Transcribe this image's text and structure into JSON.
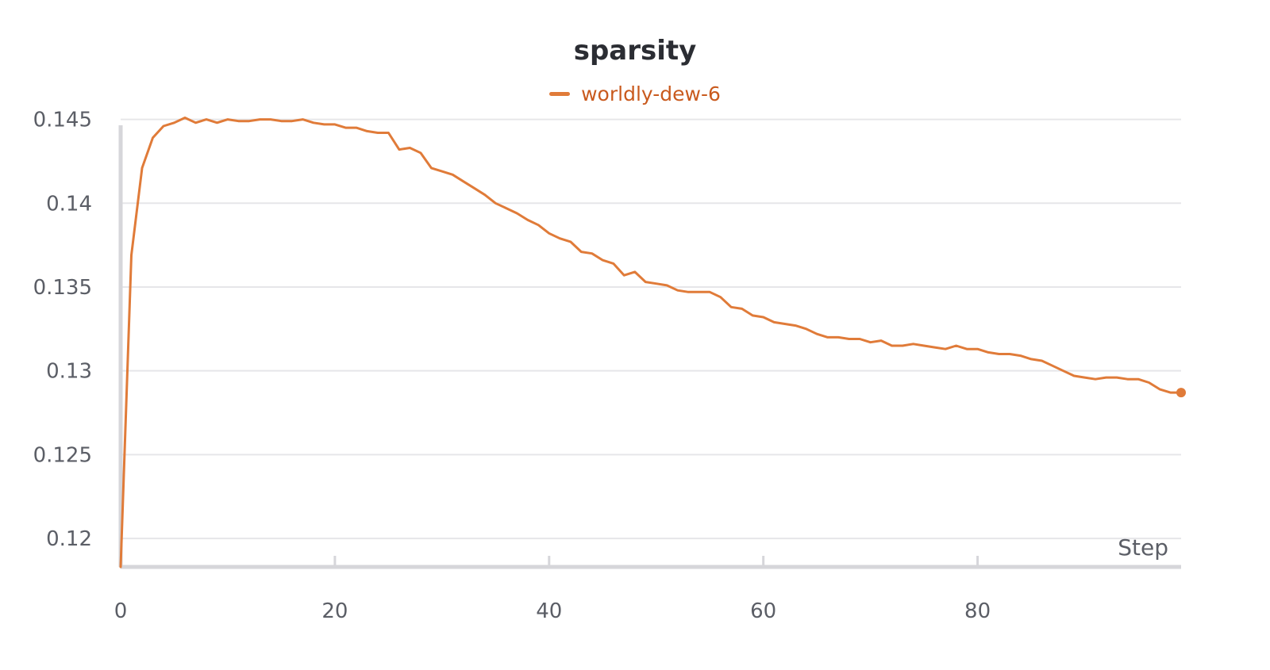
{
  "chart_data": {
    "type": "line",
    "title": "sparsity",
    "xlabel": "Step",
    "ylabel": "",
    "xlim": [
      0,
      99
    ],
    "ylim": [
      0.1183,
      0.1455
    ],
    "x_ticks": [
      0,
      20,
      40,
      60,
      80
    ],
    "y_ticks": [
      0.12,
      0.125,
      0.13,
      0.135,
      0.14,
      0.145
    ],
    "y_tick_labels": [
      "0.12",
      "0.125",
      "0.13",
      "0.135",
      "0.14",
      "0.145"
    ],
    "grid": true,
    "legend_position": "top-center",
    "series": [
      {
        "name": "worldly-dew-6",
        "color": "#e07b39",
        "x": [
          0,
          1,
          2,
          3,
          4,
          5,
          6,
          7,
          8,
          9,
          10,
          11,
          12,
          13,
          14,
          15,
          16,
          17,
          18,
          19,
          20,
          21,
          22,
          23,
          24,
          25,
          26,
          27,
          28,
          29,
          30,
          31,
          32,
          33,
          34,
          35,
          36,
          37,
          38,
          39,
          40,
          41,
          42,
          43,
          44,
          45,
          46,
          47,
          48,
          49,
          50,
          51,
          52,
          53,
          54,
          55,
          56,
          57,
          58,
          59,
          60,
          61,
          62,
          63,
          64,
          65,
          66,
          67,
          68,
          69,
          70,
          71,
          72,
          73,
          74,
          75,
          76,
          77,
          78,
          79,
          80,
          81,
          82,
          83,
          84,
          85,
          86,
          87,
          88,
          89,
          90,
          91,
          92,
          93,
          94,
          95,
          96,
          97,
          98,
          99
        ],
        "y": [
          0.1183,
          0.1369,
          0.1421,
          0.1439,
          0.1446,
          0.1448,
          0.1451,
          0.1448,
          0.145,
          0.1448,
          0.145,
          0.1449,
          0.1449,
          0.145,
          0.145,
          0.1449,
          0.1449,
          0.145,
          0.1448,
          0.1447,
          0.1447,
          0.1445,
          0.1445,
          0.1443,
          0.1442,
          0.1442,
          0.1432,
          0.1433,
          0.143,
          0.1421,
          0.1419,
          0.1417,
          0.1413,
          0.1409,
          0.1405,
          0.14,
          0.1397,
          0.1394,
          0.139,
          0.1387,
          0.1382,
          0.1379,
          0.1377,
          0.1371,
          0.137,
          0.1366,
          0.1364,
          0.1357,
          0.1359,
          0.1353,
          0.1352,
          0.1351,
          0.1348,
          0.1347,
          0.1347,
          0.1347,
          0.1344,
          0.1338,
          0.1337,
          0.1333,
          0.1332,
          0.1329,
          0.1328,
          0.1327,
          0.1325,
          0.1322,
          0.132,
          0.132,
          0.1319,
          0.1319,
          0.1317,
          0.1318,
          0.1315,
          0.1315,
          0.1316,
          0.1315,
          0.1314,
          0.1313,
          0.1315,
          0.1313,
          0.1313,
          0.1311,
          0.131,
          0.131,
          0.1309,
          0.1307,
          0.1306,
          0.1303,
          0.13,
          0.1297,
          0.1296,
          0.1295,
          0.1296,
          0.1296,
          0.1295,
          0.1295,
          0.1293,
          0.1289,
          0.1287,
          0.1287
        ]
      }
    ]
  },
  "colors": {
    "title": "#2b2d33",
    "tick_text": "#5b5e66",
    "grid": "#e6e6e9",
    "axis": "#d6d6da",
    "legend_text": "#c95a1e"
  }
}
